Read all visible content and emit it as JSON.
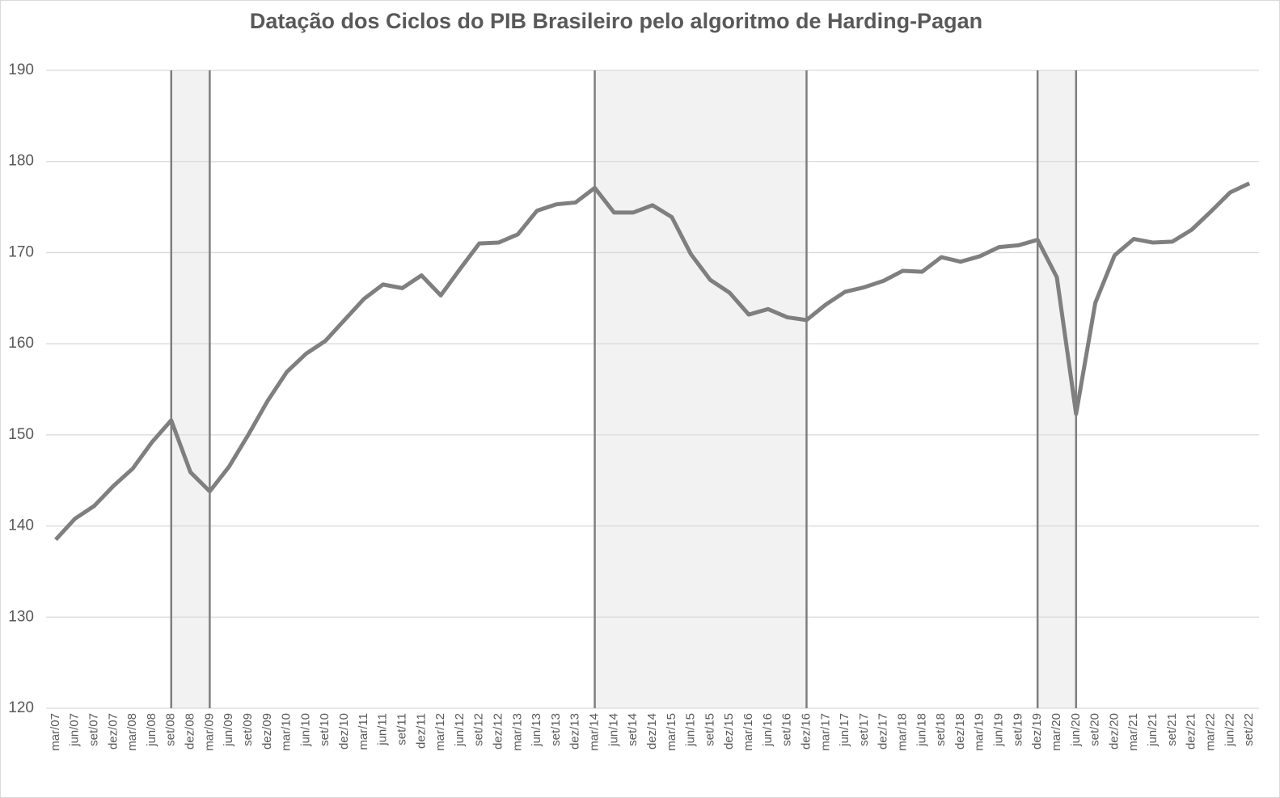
{
  "chart_data": {
    "type": "line",
    "title": "Datação dos Ciclos do PIB Brasileiro pelo algoritmo de Harding-Pagan",
    "categories": [
      "mar/07",
      "jun/07",
      "set/07",
      "dez/07",
      "mar/08",
      "jun/08",
      "set/08",
      "dez/08",
      "mar/09",
      "jun/09",
      "set/09",
      "dez/09",
      "mar/10",
      "jun/10",
      "set/10",
      "dez/10",
      "mar/11",
      "jun/11",
      "set/11",
      "dez/11",
      "mar/12",
      "jun/12",
      "set/12",
      "dez/12",
      "mar/13",
      "jun/13",
      "set/13",
      "dez/13",
      "mar/14",
      "jun/14",
      "set/14",
      "dez/14",
      "mar/15",
      "jun/15",
      "set/15",
      "dez/15",
      "mar/16",
      "jun/16",
      "set/16",
      "dez/16",
      "mar/17",
      "jun/17",
      "set/17",
      "dez/17",
      "mar/18",
      "jun/18",
      "set/18",
      "dez/18",
      "mar/19",
      "jun/19",
      "set/19",
      "dez/19",
      "mar/20",
      "jun/20",
      "set/20",
      "dez/20",
      "mar/21",
      "jun/21",
      "set/21",
      "dez/21",
      "mar/22",
      "jun/22",
      "set/22"
    ],
    "values": [
      138.5,
      140.8,
      142.2,
      144.4,
      146.3,
      149.2,
      151.6,
      145.9,
      143.8,
      146.5,
      150.0,
      153.7,
      156.9,
      158.9,
      160.3,
      162.6,
      164.9,
      166.5,
      166.1,
      167.5,
      165.3,
      168.2,
      171.0,
      171.1,
      172.0,
      174.6,
      175.3,
      175.5,
      177.1,
      174.4,
      174.4,
      175.2,
      173.9,
      169.8,
      167.0,
      165.6,
      163.2,
      163.8,
      162.9,
      162.6,
      164.3,
      165.7,
      166.2,
      166.9,
      168.0,
      167.9,
      169.5,
      169.0,
      169.6,
      170.6,
      170.8,
      171.4,
      167.3,
      152.3,
      164.5,
      169.7,
      171.5,
      171.1,
      171.2,
      172.5,
      174.5,
      176.6,
      177.6
    ],
    "color": "#7f7f7f",
    "shaded_periods": [
      [
        "set/08",
        "mar/09"
      ],
      [
        "mar/14",
        "dez/16"
      ],
      [
        "dez/19",
        "jun/20"
      ]
    ],
    "shade_color": "#f2f2f2",
    "ylim": [
      120,
      190
    ],
    "yticks": [
      120,
      130,
      140,
      150,
      160,
      170,
      180,
      190
    ],
    "grid": true
  }
}
